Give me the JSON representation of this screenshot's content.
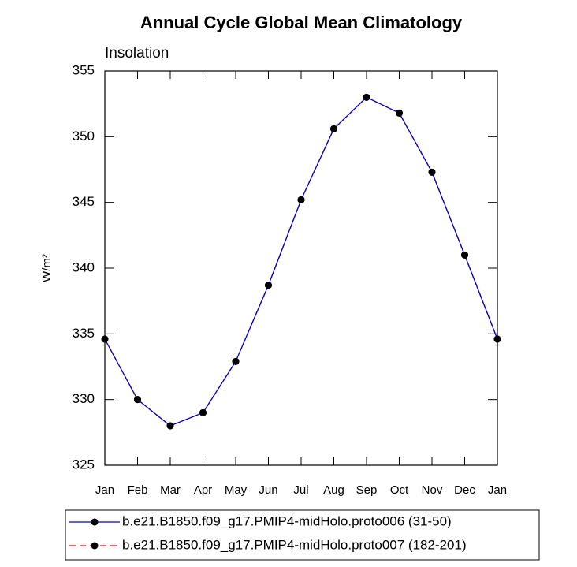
{
  "chart_data": {
    "type": "line",
    "title": "Annual Cycle Global Mean Climatology",
    "subtitle": "Insolation",
    "y_label": "W/m²",
    "categories": [
      "Jan",
      "Feb",
      "Mar",
      "Apr",
      "May",
      "Jun",
      "Jul",
      "Aug",
      "Sep",
      "Oct",
      "Nov",
      "Dec",
      "Jan"
    ],
    "series": [
      {
        "name": "b.e21.B1850.f09_g17.PMIP4-midHolo.proto007 (182-201)",
        "color": "#ff0000",
        "dashed": true,
        "values": [
          334.6,
          330.0,
          328.0,
          329.0,
          332.9,
          338.7,
          345.2,
          350.6,
          353.0,
          351.8,
          347.3,
          341.0,
          334.6
        ]
      },
      {
        "name": "b.e21.B1850.f09_g17.PMIP4-midHolo.proto006 (31-50)",
        "color": "#0000cc",
        "dashed": false,
        "values": [
          334.6,
          330.0,
          328.0,
          329.0,
          332.9,
          338.7,
          345.2,
          350.6,
          353.0,
          351.8,
          347.3,
          341.0,
          334.6
        ]
      }
    ],
    "ylim": [
      325,
      355
    ],
    "yticks": [
      325,
      330,
      335,
      340,
      345,
      350,
      355
    ]
  }
}
